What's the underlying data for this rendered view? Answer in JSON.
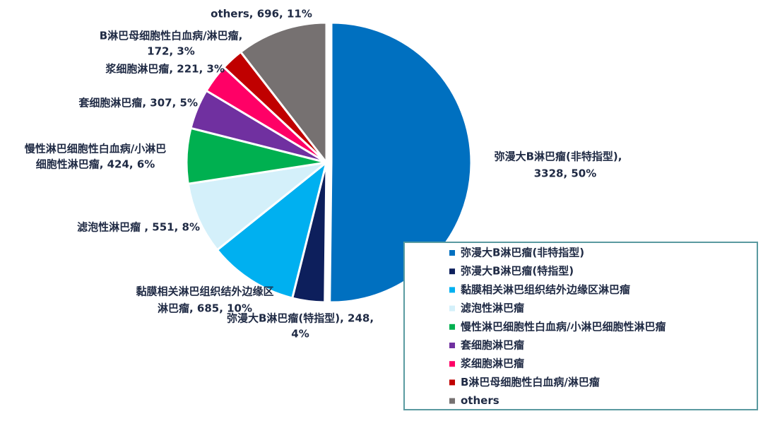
{
  "chart_data": {
    "type": "pie",
    "categories": [
      "弥漫大B淋巴瘤(非特指型)",
      "弥漫大B淋巴瘤(特指型)",
      "黏膜相关淋巴组织结外边缘区淋巴瘤",
      "滤泡性淋巴瘤",
      "慢性淋巴细胞性白血病/小淋巴细胞性淋巴瘤",
      "套细胞淋巴瘤",
      "浆细胞淋巴瘤",
      "B淋巴母细胞性白血病/淋巴瘤",
      "others"
    ],
    "values": [
      3328,
      248,
      685,
      551,
      424,
      307,
      221,
      172,
      696
    ],
    "value_labels": [
      [
        "弥漫大B淋巴瘤(非特指型),",
        "3328, 50%"
      ],
      [
        "弥漫大B淋巴瘤(特指型), 248,",
        "4%"
      ],
      [
        "黏膜相关淋巴组织结外边缘区",
        "淋巴瘤, 685, 10%"
      ],
      [
        "滤泡性淋巴瘤 , 551, 8%"
      ],
      [
        "慢性淋巴细胞性白血病/小淋巴",
        "细胞性淋巴瘤, 424, 6%"
      ],
      [
        "套细胞淋巴瘤, 307, 5%"
      ],
      [
        "浆细胞淋巴瘤, 221, 3%"
      ],
      [
        "B淋巴母细胞性白血病/淋巴瘤,",
        "172, 3%"
      ],
      [
        "others, 696, 11%"
      ]
    ],
    "colors": [
      "#0070c0",
      "#0d1f5c",
      "#00b0f0",
      "#d4f0fa",
      "#00b050",
      "#7030a0",
      "#ff0066",
      "#c00000",
      "#767171"
    ],
    "legend": "lower-right"
  }
}
